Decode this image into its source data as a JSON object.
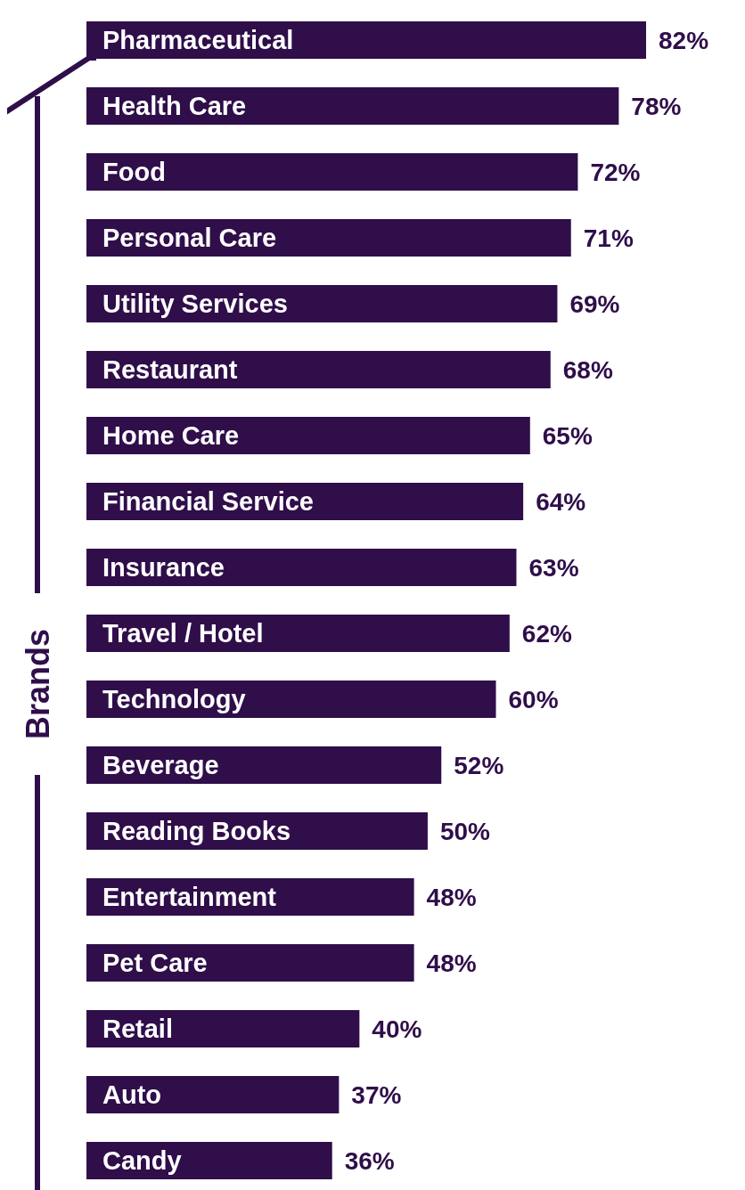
{
  "chart_data": {
    "type": "bar",
    "orientation": "horizontal",
    "ylabel": "Brands",
    "categories": [
      "Pharmaceutical",
      "Health Care",
      "Food",
      "Personal Care",
      "Utility Services",
      "Restaurant",
      "Home Care",
      "Financial Service",
      "Insurance",
      "Travel / Hotel",
      "Technology",
      "Beverage",
      "Reading Books",
      "Entertainment",
      "Pet Care",
      "Retail",
      "Auto",
      "Candy"
    ],
    "values": [
      82,
      78,
      72,
      71,
      69,
      68,
      65,
      64,
      63,
      62,
      60,
      52,
      50,
      48,
      48,
      40,
      37,
      36
    ],
    "value_labels": [
      "82%",
      "78%",
      "72%",
      "71%",
      "69%",
      "68%",
      "65%",
      "64%",
      "63%",
      "62%",
      "60%",
      "52%",
      "50%",
      "48%",
      "48%",
      "40%",
      "37%",
      "36%"
    ],
    "color": "#2f0e4a"
  }
}
